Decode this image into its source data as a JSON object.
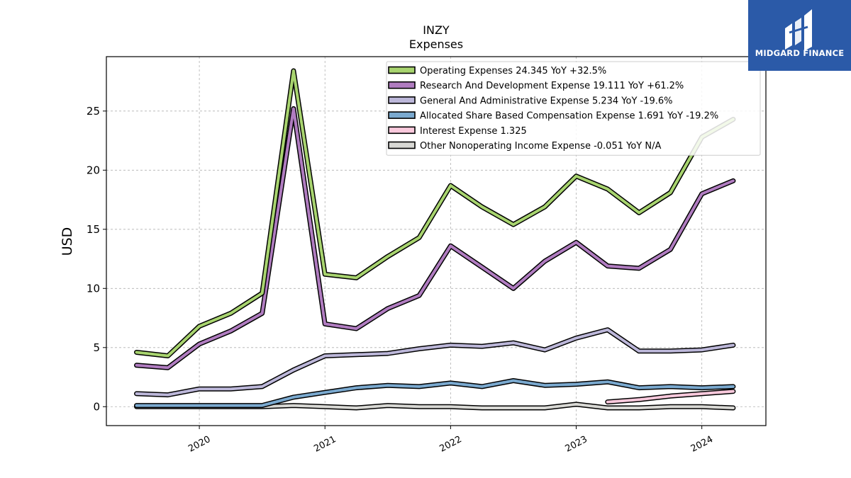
{
  "branding": {
    "name": "MIDGARD FINANCE",
    "logo_color": "#2b5aa8"
  },
  "chart_data": {
    "type": "line",
    "title": "INZY",
    "subtitle": "Expenses",
    "xlabel": "",
    "ylabel": "USD",
    "ylim": [
      -1.6,
      29.6
    ],
    "xlim": [
      2019.26,
      2024.51
    ],
    "yticks": [
      0,
      5,
      10,
      15,
      20,
      25
    ],
    "xticks": [
      {
        "value": 2020.0,
        "label": "2020"
      },
      {
        "value": 2021.0,
        "label": "2021"
      },
      {
        "value": 2022.0,
        "label": "2022"
      },
      {
        "value": 2023.0,
        "label": "2023"
      },
      {
        "value": 2024.0,
        "label": "2024"
      }
    ],
    "grid": true,
    "legend_position": "top-right",
    "series": [
      {
        "name": "Operating Expenses  24.345 YoY +32.5%",
        "color": "#a8d46f",
        "x": [
          2019.5,
          2019.75,
          2020.0,
          2020.25,
          2020.5,
          2020.75,
          2021.0,
          2021.25,
          2021.5,
          2021.75,
          2022.0,
          2022.25,
          2022.5,
          2022.75,
          2023.0,
          2023.25,
          2023.5,
          2023.75,
          2024.0,
          2024.25
        ],
        "values": [
          4.6,
          4.3,
          6.8,
          7.9,
          9.6,
          28.4,
          11.2,
          10.9,
          12.7,
          14.3,
          18.7,
          16.9,
          15.4,
          16.9,
          19.5,
          18.4,
          16.4,
          18.1,
          22.8,
          24.3
        ]
      },
      {
        "name": "Research And Development Expense  19.111 YoY +61.2%",
        "color": "#b07cc0",
        "x": [
          2019.5,
          2019.75,
          2020.0,
          2020.25,
          2020.5,
          2020.75,
          2021.0,
          2021.25,
          2021.5,
          2021.75,
          2022.0,
          2022.25,
          2022.5,
          2022.75,
          2023.0,
          2023.25,
          2023.5,
          2023.75,
          2024.0,
          2024.25
        ],
        "values": [
          3.5,
          3.3,
          5.3,
          6.4,
          7.9,
          25.2,
          7.0,
          6.6,
          8.3,
          9.4,
          13.6,
          11.8,
          10.0,
          12.3,
          13.9,
          11.9,
          11.7,
          13.3,
          18.0,
          19.1
        ]
      },
      {
        "name": "General And Administrative Expense  5.234 YoY -19.6%",
        "color": "#bcb7d9",
        "x": [
          2019.5,
          2019.75,
          2020.0,
          2020.25,
          2020.5,
          2020.75,
          2021.0,
          2021.25,
          2021.5,
          2021.75,
          2022.0,
          2022.25,
          2022.5,
          2022.75,
          2023.0,
          2023.25,
          2023.5,
          2023.75,
          2024.0,
          2024.25
        ],
        "values": [
          1.1,
          1.0,
          1.5,
          1.5,
          1.7,
          3.1,
          4.3,
          4.4,
          4.5,
          4.9,
          5.2,
          5.1,
          5.4,
          4.8,
          5.8,
          6.5,
          4.7,
          4.7,
          4.8,
          5.2
        ]
      },
      {
        "name": "Allocated Share Based Compensation Expense  1.691 YoY -19.2%",
        "color": "#7aa9cf",
        "x": [
          2019.5,
          2019.75,
          2020.0,
          2020.25,
          2020.5,
          2020.75,
          2021.0,
          2021.25,
          2021.5,
          2021.75,
          2022.0,
          2022.25,
          2022.5,
          2022.75,
          2023.0,
          2023.25,
          2023.5,
          2023.75,
          2024.0,
          2024.25
        ],
        "values": [
          0.1,
          0.1,
          0.1,
          0.1,
          0.1,
          0.8,
          1.2,
          1.6,
          1.8,
          1.7,
          2.0,
          1.7,
          2.2,
          1.8,
          1.9,
          2.1,
          1.6,
          1.7,
          1.6,
          1.7
        ]
      },
      {
        "name": "Interest Expense  1.325",
        "color": "#f9c9dc",
        "x": [
          2023.25,
          2023.5,
          2023.75,
          2024.0,
          2024.25
        ],
        "values": [
          0.4,
          0.6,
          0.9,
          1.1,
          1.3
        ]
      },
      {
        "name": "Other Nonoperating Income Expense  -0.051 YoY N/A",
        "color": "#d8d8d4",
        "x": [
          2019.5,
          2019.75,
          2020.0,
          2020.25,
          2020.5,
          2020.75,
          2021.0,
          2021.25,
          2021.5,
          2021.75,
          2022.0,
          2022.25,
          2022.5,
          2022.75,
          2023.0,
          2023.25,
          2023.5,
          2023.75,
          2024.0,
          2024.25
        ],
        "values": [
          0.0,
          0.0,
          0.0,
          0.0,
          0.0,
          0.1,
          0.0,
          -0.1,
          0.1,
          0.0,
          0.0,
          -0.1,
          -0.1,
          -0.1,
          0.2,
          -0.1,
          -0.1,
          0.0,
          0.0,
          -0.1
        ]
      }
    ]
  }
}
